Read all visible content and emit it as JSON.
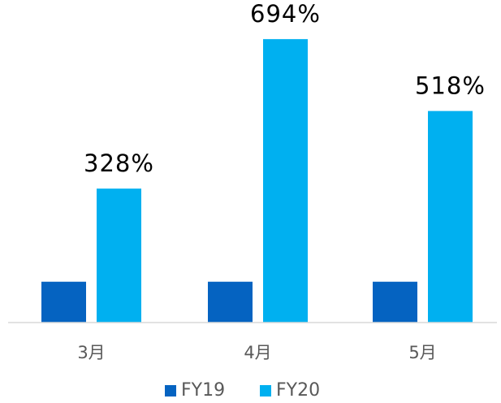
{
  "chart_data": {
    "type": "bar",
    "categories": [
      "3月",
      "4月",
      "5月"
    ],
    "series": [
      {
        "name": "FY19",
        "color": "#0563C1",
        "values": [
          100,
          100,
          100
        ],
        "labels": [
          "",
          "",
          ""
        ]
      },
      {
        "name": "FY20",
        "color": "#00B0F0",
        "values": [
          328,
          694,
          518
        ],
        "labels": [
          "328%",
          "694%",
          "518%"
        ]
      }
    ],
    "title": "",
    "xlabel": "",
    "ylabel": "",
    "ylim": [
      0,
      750
    ],
    "grid": false,
    "legend": "bottom"
  }
}
